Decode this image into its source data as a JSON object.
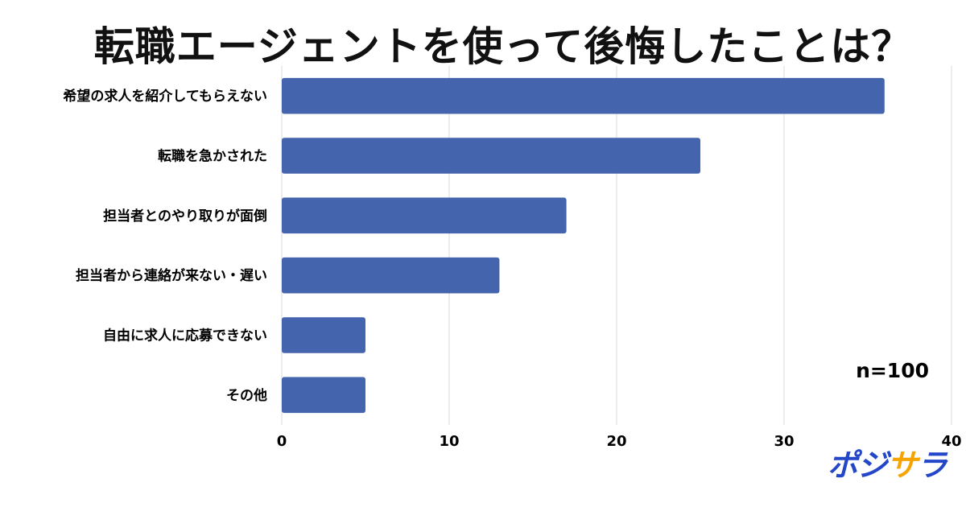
{
  "chart_data": {
    "type": "bar",
    "orientation": "horizontal",
    "title": "転職エージェントを使って後悔したことは？",
    "categories": [
      "希望の求人を紹介してもらえない",
      "転職を急かされた",
      "担当者とのやり取りが面倒",
      "担当者から連絡が来ない・遅い",
      "自由に求人に応募できない",
      "その他"
    ],
    "values": [
      36,
      25,
      17,
      13,
      5,
      5
    ],
    "xlim": [
      0,
      40
    ],
    "xticks": [
      "0",
      "10",
      "20",
      "30",
      "40"
    ],
    "grid": true,
    "bar_color": "#4464ad",
    "annotation": "n=100"
  },
  "logo": {
    "text_main": "ポジ",
    "text_accent": "サ",
    "text_end": "ラ",
    "color": "#2446c8",
    "accent_color": "#f5a400"
  }
}
